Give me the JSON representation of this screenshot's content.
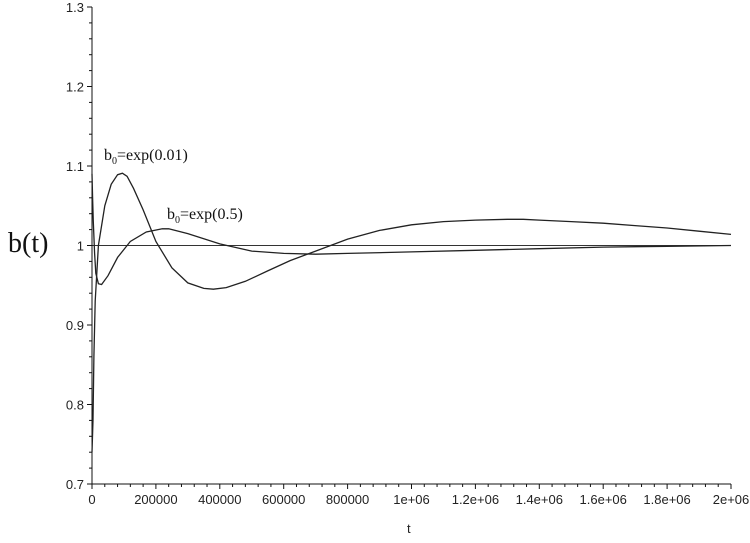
{
  "chart_data": {
    "type": "line",
    "xlabel": "t",
    "ylabel": "b(t)",
    "xlim": [
      0,
      2000000
    ],
    "ylim": [
      0.7,
      1.3
    ],
    "grid": false,
    "x_ticks": [
      {
        "value": 0,
        "label": "0"
      },
      {
        "value": 200000,
        "label": "200000"
      },
      {
        "value": 400000,
        "label": "400000"
      },
      {
        "value": 600000,
        "label": "600000"
      },
      {
        "value": 800000,
        "label": "800000"
      },
      {
        "value": 1000000,
        "label": "1e+06"
      },
      {
        "value": 1200000,
        "label": "1.2e+06"
      },
      {
        "value": 1400000,
        "label": "1.4e+06"
      },
      {
        "value": 1600000,
        "label": "1.6e+06"
      },
      {
        "value": 1800000,
        "label": "1.8e+06"
      },
      {
        "value": 2000000,
        "label": "2e+06"
      }
    ],
    "y_ticks": [
      {
        "value": 0.7,
        "label": "0.7"
      },
      {
        "value": 0.8,
        "label": "0.8"
      },
      {
        "value": 0.9,
        "label": "0.9"
      },
      {
        "value": 1.0,
        "label": "1"
      },
      {
        "value": 1.1,
        "label": "1.1"
      },
      {
        "value": 1.2,
        "label": "1.2"
      },
      {
        "value": 1.3,
        "label": "1.3"
      }
    ],
    "reference_line": {
      "y": 1.0
    },
    "series": [
      {
        "annotation": {
          "base": "b",
          "sub": "0",
          "rest": "=exp(0.01)"
        },
        "x": [
          0,
          3000,
          6000,
          10000,
          20000,
          40000,
          60000,
          80000,
          95000,
          110000,
          130000,
          160000,
          200000,
          250000,
          300000,
          350000,
          380000,
          420000,
          480000,
          550000,
          620000,
          700000,
          800000,
          900000,
          1000000,
          1100000,
          1200000,
          1300000,
          1350000,
          1400000,
          1500000,
          1600000,
          1700000,
          1800000,
          1900000,
          2000000
        ],
        "y": [
          0.74,
          0.78,
          0.86,
          0.93,
          1.0,
          1.05,
          1.077,
          1.089,
          1.091,
          1.087,
          1.072,
          1.045,
          1.005,
          0.972,
          0.953,
          0.946,
          0.945,
          0.947,
          0.955,
          0.968,
          0.981,
          0.993,
          1.008,
          1.019,
          1.026,
          1.03,
          1.032,
          1.033,
          1.033,
          1.032,
          1.03,
          1.028,
          1.025,
          1.022,
          1.018,
          1.014
        ]
      },
      {
        "annotation": {
          "base": "b",
          "sub": "0",
          "rest": "=exp(0.5)"
        },
        "x": [
          0,
          2000,
          4000,
          8000,
          12000,
          20000,
          30000,
          50000,
          80000,
          120000,
          170000,
          220000,
          240000,
          260000,
          300000,
          400000,
          500000,
          600000,
          700000,
          800000,
          1000000,
          1200000,
          1400000,
          1600000,
          1800000,
          2000000
        ],
        "y": [
          1.09,
          1.06,
          1.03,
          0.99,
          0.965,
          0.952,
          0.951,
          0.962,
          0.985,
          1.005,
          1.017,
          1.021,
          1.021,
          1.019,
          1.015,
          1.002,
          0.993,
          0.99,
          0.989,
          0.99,
          0.992,
          0.994,
          0.996,
          0.998,
          0.999,
          1.0
        ]
      }
    ]
  }
}
